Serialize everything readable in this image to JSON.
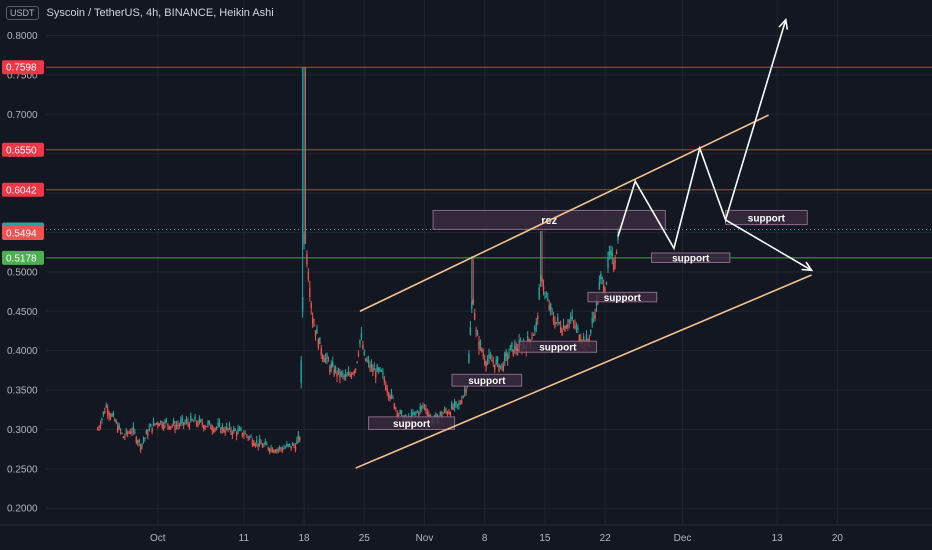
{
  "header": {
    "currency": "USDT",
    "title": "Syscoin / TetherUS, 4h, BINANCE, Heikin Ashi"
  },
  "colors": {
    "background": "#131722",
    "up": "#26a69a",
    "down": "#ef5350",
    "channel": "#f5c28c",
    "arrow": "#ffffff",
    "resistance_line": "#f23645",
    "support_line": "#4caf50",
    "zone_fill": "#3a2a3e",
    "zone_border": "#8a6a86"
  },
  "chart_data": {
    "type": "candlestick",
    "symbol": "Syscoin / TetherUS",
    "timeframe": "4h",
    "exchange": "BINANCE",
    "candle_style": "Heikin Ashi",
    "y_ticks": [
      "0.2000",
      "0.2500",
      "0.3000",
      "0.3500",
      "0.4000",
      "0.4500",
      "0.5000",
      "0.5500",
      "0.6000",
      "0.6500",
      "0.7000",
      "0.7500",
      "0.8000"
    ],
    "ylim": [
      0.18,
      0.84
    ],
    "x_ticks": [
      "Oct",
      "11",
      "18",
      "25",
      "Nov",
      "8",
      "15",
      "22",
      "Dec",
      "13",
      "20"
    ],
    "x_tick_days": [
      0,
      10,
      17,
      24,
      31,
      38,
      45,
      52,
      61,
      72,
      79
    ],
    "xlim": [
      -13,
      90
    ],
    "price_levels": [
      {
        "value": 0.7598,
        "label": "0.7598",
        "kind": "resistance"
      },
      {
        "value": 0.655,
        "label": "0.6550",
        "kind": "resistance"
      },
      {
        "value": 0.6042,
        "label": "0.6042",
        "kind": "resistance"
      },
      {
        "value": 0.5178,
        "label": "0.5178",
        "kind": "support"
      }
    ],
    "price_tags": [
      {
        "value": 0.5538,
        "label": "0.5538",
        "kind": "current"
      },
      {
        "value": 0.5494,
        "label": "0.5494",
        "kind": "down"
      }
    ],
    "price_path": [
      [
        -7,
        0.3
      ],
      [
        -6,
        0.33
      ],
      [
        -5,
        0.31
      ],
      [
        -4,
        0.29
      ],
      [
        -3,
        0.3
      ],
      [
        -2,
        0.28
      ],
      [
        -1,
        0.3
      ],
      [
        0,
        0.31
      ],
      [
        2,
        0.305
      ],
      [
        4,
        0.31
      ],
      [
        6,
        0.305
      ],
      [
        8,
        0.3
      ],
      [
        10,
        0.295
      ],
      [
        12,
        0.28
      ],
      [
        14,
        0.275
      ],
      [
        16,
        0.28
      ],
      [
        16.5,
        0.29
      ],
      [
        17,
        0.56
      ],
      [
        17.5,
        0.5
      ],
      [
        18,
        0.44
      ],
      [
        19,
        0.4
      ],
      [
        20,
        0.38
      ],
      [
        21,
        0.37
      ],
      [
        22,
        0.365
      ],
      [
        23,
        0.38
      ],
      [
        23.6,
        0.42
      ],
      [
        24,
        0.39
      ],
      [
        25,
        0.375
      ],
      [
        26,
        0.37
      ],
      [
        27,
        0.345
      ],
      [
        28,
        0.32
      ],
      [
        29,
        0.31
      ],
      [
        30,
        0.32
      ],
      [
        31,
        0.33
      ],
      [
        32,
        0.31
      ],
      [
        33,
        0.32
      ],
      [
        34,
        0.325
      ],
      [
        35,
        0.33
      ],
      [
        36,
        0.36
      ],
      [
        36.6,
        0.48
      ],
      [
        37,
        0.42
      ],
      [
        38,
        0.39
      ],
      [
        39,
        0.385
      ],
      [
        40,
        0.38
      ],
      [
        41,
        0.4
      ],
      [
        42,
        0.405
      ],
      [
        43,
        0.41
      ],
      [
        44,
        0.43
      ],
      [
        44.6,
        0.5
      ],
      [
        45,
        0.47
      ],
      [
        46,
        0.44
      ],
      [
        47,
        0.43
      ],
      [
        48,
        0.44
      ],
      [
        49,
        0.42
      ],
      [
        50,
        0.41
      ],
      [
        51,
        0.46
      ],
      [
        51.5,
        0.49
      ],
      [
        52,
        0.48
      ],
      [
        52.5,
        0.52
      ],
      [
        53,
        0.51
      ],
      [
        53.5,
        0.545
      ]
    ],
    "channel": {
      "upper": [
        [
          23.5,
          0.45
        ],
        [
          71,
          0.699
        ]
      ],
      "lower": [
        [
          23,
          0.251
        ],
        [
          76,
          0.496
        ]
      ]
    },
    "projection": [
      [
        53.5,
        0.545
      ],
      [
        55.5,
        0.615
      ],
      [
        60,
        0.53
      ],
      [
        63,
        0.657
      ],
      [
        66,
        0.566
      ],
      [
        73,
        0.82
      ]
    ],
    "projection_end": [
      [
        66,
        0.566
      ],
      [
        76,
        0.502
      ]
    ],
    "zones": [
      {
        "label": "rez",
        "x0": 32,
        "x1": 59,
        "y0": 0.554,
        "y1": 0.578
      },
      {
        "label": "support",
        "x0": 24.5,
        "x1": 34.5,
        "y0": 0.3,
        "y1": 0.316
      },
      {
        "label": "support",
        "x0": 34.2,
        "x1": 42.3,
        "y0": 0.355,
        "y1": 0.37
      },
      {
        "label": "support",
        "x0": 42.0,
        "x1": 51.0,
        "y0": 0.398,
        "y1": 0.412
      },
      {
        "label": "support",
        "x0": 50.0,
        "x1": 58.0,
        "y0": 0.462,
        "y1": 0.474
      },
      {
        "label": "support",
        "x0": 57.4,
        "x1": 66.5,
        "y0": 0.512,
        "y1": 0.524
      },
      {
        "label": "support",
        "x0": 66.0,
        "x1": 75.5,
        "y0": 0.56,
        "y1": 0.578
      }
    ]
  }
}
